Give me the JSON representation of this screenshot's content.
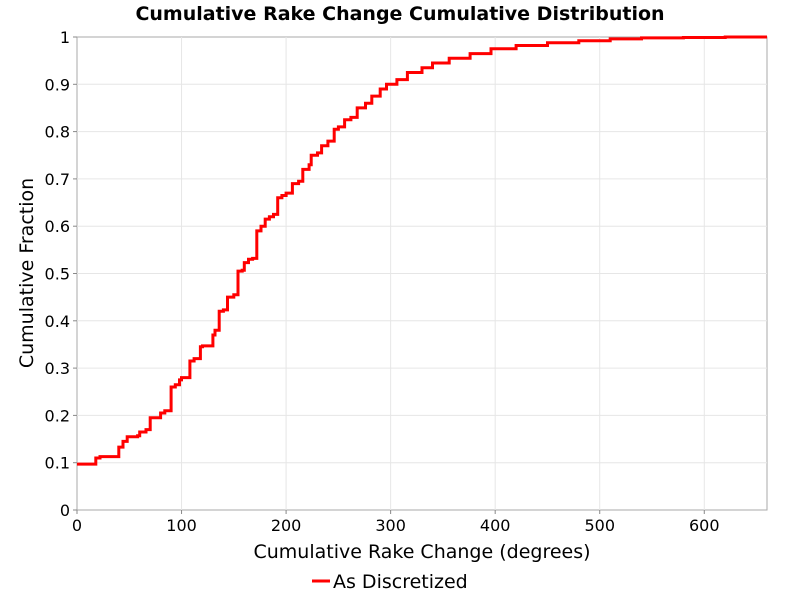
{
  "chart_data": {
    "type": "line",
    "title": "Cumulative Rake Change Cumulative Distribution",
    "xlabel": "Cumulative Rake Change (degrees)",
    "ylabel": "Cumulative Fraction",
    "xlim": [
      0,
      660
    ],
    "ylim": [
      0,
      1
    ],
    "x_ticks": [
      "0",
      "100",
      "200",
      "300",
      "400",
      "500",
      "600"
    ],
    "y_ticks": [
      "0",
      "0.1",
      "0.2",
      "0.3",
      "0.4",
      "0.5",
      "0.6",
      "0.7",
      "0.8",
      "0.9",
      "1"
    ],
    "grid": true,
    "legend_position": "bottom-center",
    "series": [
      {
        "name": "As Discretized",
        "color": "#ff0000",
        "step": true,
        "x": [
          0,
          18,
          22,
          40,
          44,
          48,
          58,
          60,
          66,
          70,
          80,
          84,
          90,
          94,
          98,
          100,
          108,
          112,
          118,
          120,
          130,
          132,
          136,
          140,
          144,
          150,
          154,
          158,
          160,
          164,
          168,
          172,
          176,
          180,
          184,
          188,
          192,
          196,
          200,
          206,
          212,
          216,
          222,
          224,
          230,
          234,
          240,
          246,
          250,
          256,
          262,
          268,
          276,
          282,
          290,
          296,
          306,
          316,
          330,
          340,
          356,
          376,
          396,
          420,
          450,
          480,
          510,
          540,
          580,
          620,
          660
        ],
        "y": [
          0.097,
          0.11,
          0.113,
          0.133,
          0.145,
          0.155,
          0.157,
          0.165,
          0.17,
          0.195,
          0.205,
          0.21,
          0.26,
          0.265,
          0.275,
          0.28,
          0.315,
          0.32,
          0.345,
          0.347,
          0.37,
          0.38,
          0.42,
          0.423,
          0.45,
          0.455,
          0.505,
          0.507,
          0.523,
          0.53,
          0.532,
          0.59,
          0.6,
          0.615,
          0.62,
          0.625,
          0.66,
          0.665,
          0.67,
          0.69,
          0.695,
          0.72,
          0.73,
          0.75,
          0.755,
          0.77,
          0.78,
          0.805,
          0.81,
          0.825,
          0.83,
          0.85,
          0.86,
          0.875,
          0.89,
          0.9,
          0.91,
          0.925,
          0.935,
          0.945,
          0.955,
          0.965,
          0.975,
          0.982,
          0.988,
          0.992,
          0.996,
          0.998,
          0.999,
          1.0,
          1.0
        ]
      }
    ]
  }
}
